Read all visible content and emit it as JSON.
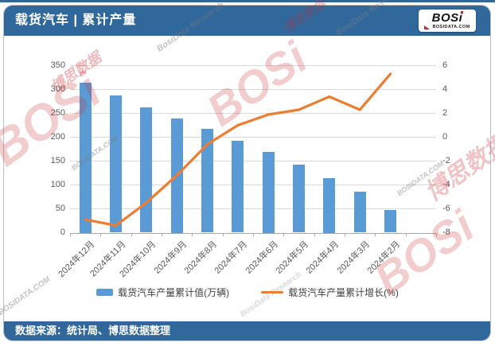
{
  "header": {
    "title": "载货汽车 | 累计产量",
    "logo": {
      "brand": "BOSi",
      "domain": "BOSIDATA.COM"
    }
  },
  "footer": {
    "source": "数据来源：统计局、博思数据整理"
  },
  "watermark": {
    "brand": "BOSi",
    "cn": "博思数据",
    "research": "BosiData Research",
    "domain": "BOSIDATA.COM"
  },
  "chart_data": {
    "type": "bar",
    "subtype": "bar+line dual axis",
    "categories": [
      "2024年12月",
      "2024年11月",
      "2024年10月",
      "2024年9月",
      "2024年8月",
      "2024年7月",
      "2024年6月",
      "2024年5月",
      "2024年4月",
      "2024年3月",
      "2024年2月"
    ],
    "series": [
      {
        "name": "载货汽车产量累计值(万辆)",
        "type": "bar",
        "axis": "left",
        "color": "#5B9BD5",
        "values": [
          315,
          288,
          263,
          240,
          217,
          193,
          170,
          143,
          115,
          86,
          47
        ]
      },
      {
        "name": "载货汽车产量累计增长(%)",
        "type": "line",
        "axis": "right",
        "color": "#ED7D31",
        "values": [
          -6.9,
          -7.4,
          -5.5,
          -3.2,
          -0.6,
          1.0,
          1.9,
          2.3,
          3.4,
          2.3,
          5.3
        ]
      }
    ],
    "left_axis": {
      "min": 0,
      "max": 350,
      "step": 50,
      "ticks": [
        0,
        50,
        100,
        150,
        200,
        250,
        300,
        350
      ]
    },
    "right_axis": {
      "min": -8,
      "max": 6,
      "step": 2,
      "ticks": [
        -8,
        -6,
        -4,
        -2,
        0,
        2,
        4,
        6
      ]
    },
    "grid": true,
    "legend_position": "bottom"
  }
}
